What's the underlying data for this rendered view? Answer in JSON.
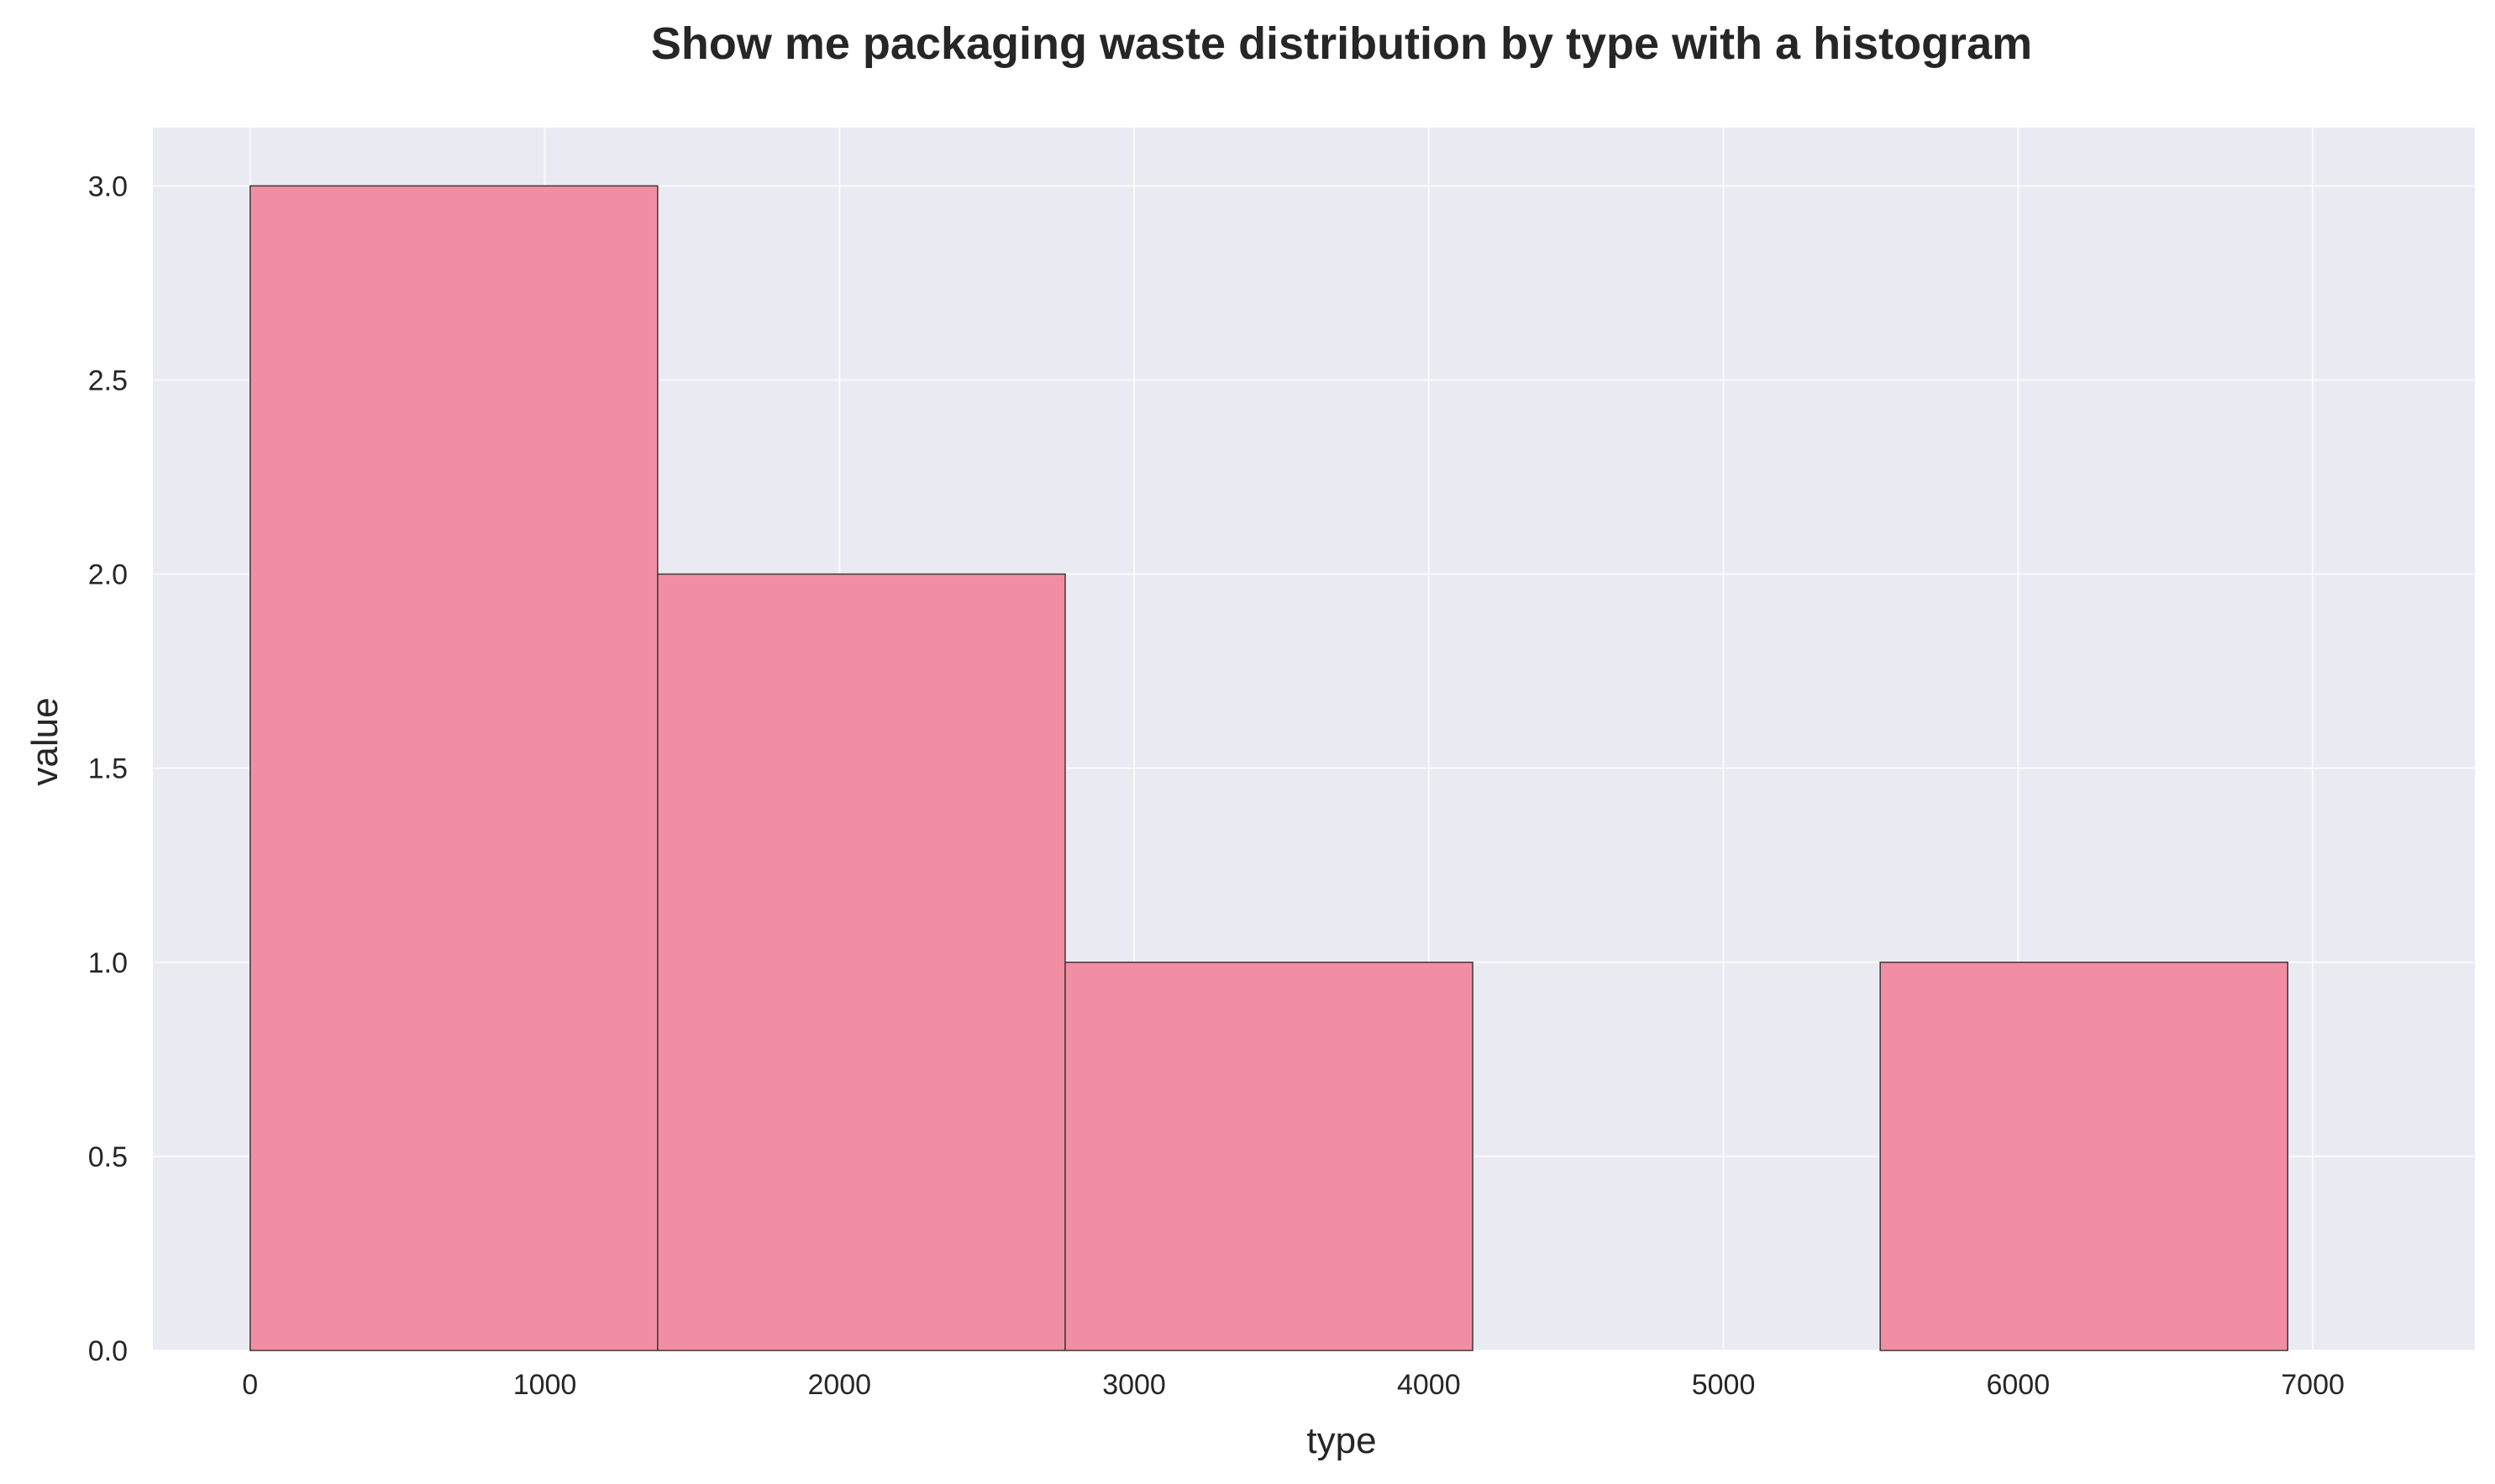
{
  "chart_data": {
    "type": "bar",
    "subtype": "histogram",
    "title": "Show me packaging waste distribution by type with a histogram",
    "xlabel": "type",
    "ylabel": "value",
    "bins": [
      {
        "x0": 0,
        "x1": 1383,
        "count": 3
      },
      {
        "x0": 1383,
        "x1": 2766,
        "count": 2
      },
      {
        "x0": 2766,
        "x1": 4149,
        "count": 1
      },
      {
        "x0": 4149,
        "x1": 5532,
        "count": 0
      },
      {
        "x0": 5532,
        "x1": 6915,
        "count": 1
      }
    ],
    "xlim": [
      -330,
      7550
    ],
    "ylim": [
      0,
      3.15
    ],
    "xticks": [
      0,
      1000,
      2000,
      3000,
      4000,
      5000,
      6000,
      7000
    ],
    "xtick_labels": [
      "0",
      "1000",
      "2000",
      "3000",
      "4000",
      "5000",
      "6000",
      "7000"
    ],
    "yticks": [
      0,
      0.5,
      1.0,
      1.5,
      2.0,
      2.5,
      3.0
    ],
    "ytick_labels": [
      "0.0",
      "0.5",
      "1.0",
      "1.5",
      "2.0",
      "2.5",
      "3.0"
    ],
    "grid": true,
    "colors": {
      "bar_fill": "#f28ea3",
      "bar_edge": "#3a3a3a",
      "plot_background": "#eaeaf2",
      "grid": "#ffffff",
      "text": "#262626"
    }
  }
}
